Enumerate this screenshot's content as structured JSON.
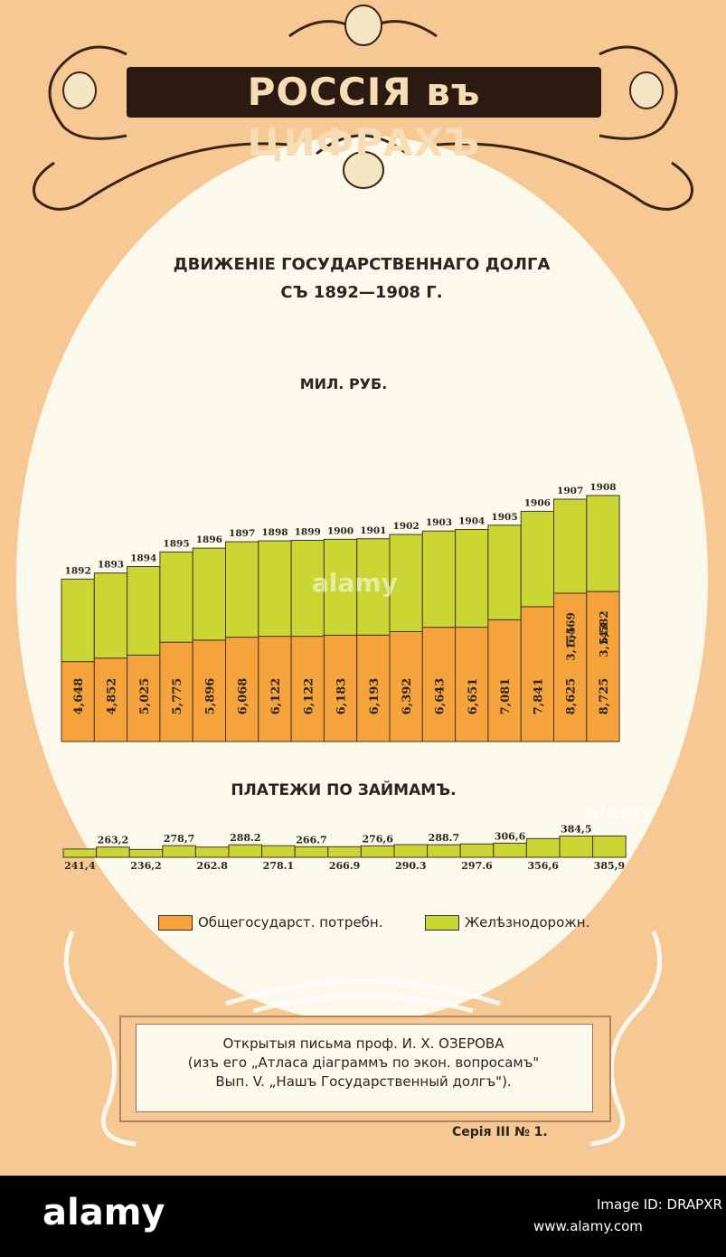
{
  "header": {
    "main_title": "РОССІЯ въ ЦИФРАХЪ",
    "chart_title_line1": "ДВИЖЕНІЕ ГОСУДАРСТВЕННАГО ДОЛГА",
    "chart_title_line2": "СЪ 1892—1908 Г.",
    "unit": "МИЛ. РУБ.",
    "payments_title": "ПЛАТЕЖИ ПО ЗАЙМАМЪ."
  },
  "legend": {
    "item1": "Общегосударст. потребн.",
    "item2": "Желѣзнодорожн."
  },
  "footer": {
    "line1": "Открытыя письма проф. И. Х. ОЗЕРОВА",
    "line2": "(изъ его „Атласа діаграммъ по экон. вопросамъ\"",
    "line3": "Вып. V. „Нашъ Государственный долгъ\").",
    "series": "Серія III № 1."
  },
  "watermarks": {
    "center": "alamy",
    "right": "alamy"
  },
  "bottom_band": {
    "logo": "alamy",
    "image_id": "Image ID: DRAPXR",
    "url": "www.alamy.com"
  },
  "colors": {
    "general": "#f5a33c",
    "railway": "#c9d634",
    "background": "#f6c894",
    "oval": "#fbf8ec"
  },
  "chart_data": [
    {
      "type": "bar",
      "stacked": true,
      "title": "ДВИЖЕНІЕ ГОСУДАРСТВЕННАГО ДОЛГА СЪ 1892—1908 Г.",
      "ylabel": "МИЛ. РУБ.",
      "categories": [
        "1892",
        "1893",
        "1894",
        "1895",
        "1896",
        "1897",
        "1898",
        "1899",
        "1900",
        "1901",
        "1902",
        "1903",
        "1904",
        "1905",
        "1906",
        "1907",
        "1908"
      ],
      "series": [
        {
          "name": "Общегосударст. потребн.",
          "values": [
            4648,
            4852,
            5025,
            5775,
            5896,
            6068,
            6122,
            6122,
            6183,
            6193,
            6392,
            6643,
            6651,
            7081,
            7841,
            8625,
            8725
          ],
          "labels": [
            "4,648",
            "4,852",
            "5,025",
            "5,775",
            "5,896",
            "6,068",
            "6,122",
            "6,122",
            "6,183",
            "6,193",
            "6,392",
            "6,643",
            "6,651",
            "7,081",
            "7,841",
            "8,625",
            "8,725"
          ]
        },
        {
          "name": "Желѣзнодорожн.",
          "values": [
            4800,
            4950,
            5150,
            5250,
            5350,
            5550,
            5550,
            5580,
            5580,
            5600,
            5650,
            5600,
            5680,
            5500,
            5550,
            5469,
            5582
          ],
          "labels": [
            "",
            "",
            "",
            "",
            "",
            "",
            "",
            "",
            "",
            "",
            "",
            "",
            "",
            "",
            "",
            "5,469",
            "5,582"
          ]
        }
      ],
      "top_labels": [
        "3,155",
        "3,143"
      ],
      "ylim": [
        0,
        14500
      ]
    },
    {
      "type": "bar",
      "title": "ПЛАТЕЖИ ПО ЗАЙМАМЪ.",
      "categories": [
        "1892",
        "1893",
        "1894",
        "1895",
        "1896",
        "1897",
        "1898",
        "1899",
        "1900",
        "1901",
        "1902",
        "1903",
        "1904",
        "1905",
        "1906",
        "1907",
        "1908"
      ],
      "values": [
        241.4,
        263.2,
        236.2,
        278.7,
        262.8,
        288.2,
        278.1,
        266.7,
        266.9,
        276.6,
        290.3,
        288.7,
        297.6,
        306.6,
        356.6,
        384.5,
        385.9
      ],
      "labels": [
        "241,4",
        "263,2",
        "236,2",
        "278,7",
        "262.8",
        "288.2",
        "278.1",
        "266.7",
        "266.9",
        "276,6",
        "290.3",
        "288.7",
        "297.6",
        "306,6",
        "356,6",
        "384,5",
        "385,9"
      ]
    }
  ]
}
